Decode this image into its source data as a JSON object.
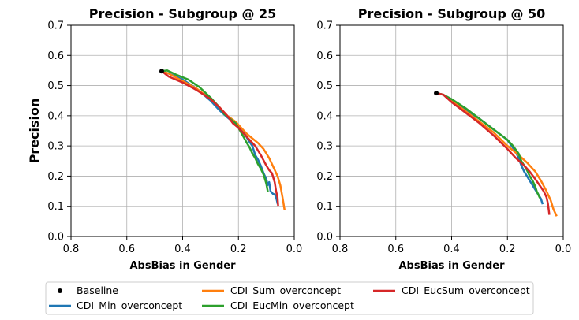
{
  "chart_data": [
    {
      "type": "line",
      "title": "Precision - Subgroup @ 25",
      "xlabel": "AbsBias in Gender",
      "ylabel": "Precision",
      "xlim": [
        0.8,
        0.0
      ],
      "ylim": [
        0.0,
        0.7
      ],
      "x_inverted": true,
      "grid": true,
      "xticks": [
        "0.8",
        "0.6",
        "0.4",
        "0.2",
        "0.0"
      ],
      "yticks": [
        "0.0",
        "0.1",
        "0.2",
        "0.3",
        "0.4",
        "0.5",
        "0.6",
        "0.7"
      ],
      "baseline": {
        "name": "Baseline",
        "x": 0.475,
        "y": 0.548
      },
      "series": [
        {
          "name": "CDI_Min_overconcept",
          "color": "#1f77b4",
          "x": [
            0.475,
            0.45,
            0.4,
            0.35,
            0.3,
            0.27,
            0.24,
            0.22,
            0.2,
            0.18,
            0.165,
            0.15,
            0.14,
            0.13,
            0.12,
            0.11,
            0.1,
            0.095,
            0.09,
            0.085,
            0.08,
            0.075,
            0.07,
            0.065,
            0.06
          ],
          "y": [
            0.548,
            0.54,
            0.52,
            0.49,
            0.45,
            0.42,
            0.395,
            0.38,
            0.365,
            0.345,
            0.32,
            0.3,
            0.27,
            0.255,
            0.235,
            0.21,
            0.19,
            0.17,
            0.18,
            0.15,
            0.145,
            0.14,
            0.14,
            0.13,
            0.11
          ]
        },
        {
          "name": "CDI_Sum_overconcept",
          "color": "#ff7f0e",
          "x": [
            0.475,
            0.45,
            0.4,
            0.35,
            0.3,
            0.27,
            0.24,
            0.21,
            0.19,
            0.17,
            0.15,
            0.13,
            0.11,
            0.09,
            0.075,
            0.06,
            0.05,
            0.042,
            0.035
          ],
          "y": [
            0.548,
            0.54,
            0.515,
            0.49,
            0.455,
            0.43,
            0.4,
            0.38,
            0.36,
            0.34,
            0.325,
            0.31,
            0.29,
            0.26,
            0.23,
            0.2,
            0.17,
            0.13,
            0.09
          ]
        },
        {
          "name": "CDI_EucMin_overconcept",
          "color": "#2ca02c",
          "x": [
            0.475,
            0.455,
            0.42,
            0.38,
            0.34,
            0.3,
            0.27,
            0.25,
            0.23,
            0.21,
            0.2,
            0.185,
            0.17,
            0.16,
            0.15,
            0.14,
            0.13,
            0.12,
            0.11,
            0.105,
            0.1,
            0.095
          ],
          "y": [
            0.548,
            0.55,
            0.535,
            0.52,
            0.495,
            0.46,
            0.43,
            0.405,
            0.39,
            0.375,
            0.36,
            0.335,
            0.31,
            0.295,
            0.275,
            0.26,
            0.24,
            0.225,
            0.205,
            0.19,
            0.175,
            0.15
          ]
        },
        {
          "name": "CDI_EucSum_overconcept",
          "color": "#d62728",
          "x": [
            0.475,
            0.45,
            0.4,
            0.35,
            0.3,
            0.27,
            0.24,
            0.22,
            0.2,
            0.18,
            0.16,
            0.14,
            0.12,
            0.1,
            0.09,
            0.08,
            0.07,
            0.065,
            0.06,
            0.058
          ],
          "y": [
            0.548,
            0.53,
            0.51,
            0.485,
            0.455,
            0.43,
            0.4,
            0.375,
            0.36,
            0.34,
            0.32,
            0.3,
            0.27,
            0.235,
            0.22,
            0.21,
            0.18,
            0.15,
            0.13,
            0.105
          ]
        }
      ]
    },
    {
      "type": "line",
      "title": "Precision - Subgroup @ 50",
      "xlabel": "AbsBias in Gender",
      "ylabel": "",
      "xlim": [
        0.8,
        0.0
      ],
      "ylim": [
        0.0,
        0.7
      ],
      "x_inverted": true,
      "grid": true,
      "xticks": [
        "0.8",
        "0.6",
        "0.4",
        "0.2",
        "0.0"
      ],
      "yticks": [
        "0.0",
        "0.1",
        "0.2",
        "0.3",
        "0.4",
        "0.5",
        "0.6",
        "0.7"
      ],
      "baseline": {
        "name": "Baseline",
        "x": 0.455,
        "y": 0.475
      },
      "series": [
        {
          "name": "CDI_Min_overconcept",
          "color": "#1f77b4",
          "x": [
            0.455,
            0.43,
            0.4,
            0.35,
            0.3,
            0.25,
            0.2,
            0.17,
            0.16,
            0.15,
            0.14,
            0.13,
            0.12,
            0.11,
            0.1,
            0.09,
            0.08,
            0.075
          ],
          "y": [
            0.475,
            0.47,
            0.45,
            0.42,
            0.39,
            0.355,
            0.32,
            0.28,
            0.26,
            0.235,
            0.215,
            0.2,
            0.185,
            0.17,
            0.155,
            0.14,
            0.125,
            0.11
          ]
        },
        {
          "name": "CDI_Sum_overconcept",
          "color": "#ff7f0e",
          "x": [
            0.455,
            0.43,
            0.4,
            0.35,
            0.3,
            0.25,
            0.2,
            0.16,
            0.13,
            0.1,
            0.08,
            0.06,
            0.045,
            0.035,
            0.025
          ],
          "y": [
            0.475,
            0.47,
            0.45,
            0.415,
            0.38,
            0.345,
            0.3,
            0.27,
            0.245,
            0.215,
            0.185,
            0.15,
            0.12,
            0.09,
            0.07
          ]
        },
        {
          "name": "CDI_EucMin_overconcept",
          "color": "#2ca02c",
          "x": [
            0.455,
            0.43,
            0.4,
            0.35,
            0.3,
            0.25,
            0.2,
            0.18,
            0.16,
            0.15,
            0.14,
            0.13,
            0.12,
            0.11,
            0.1,
            0.095,
            0.09,
            0.085
          ],
          "y": [
            0.475,
            0.47,
            0.455,
            0.425,
            0.39,
            0.355,
            0.32,
            0.3,
            0.275,
            0.25,
            0.235,
            0.22,
            0.2,
            0.185,
            0.165,
            0.15,
            0.14,
            0.13
          ]
        },
        {
          "name": "CDI_EucSum_overconcept",
          "color": "#d62728",
          "x": [
            0.455,
            0.43,
            0.4,
            0.35,
            0.3,
            0.25,
            0.2,
            0.17,
            0.14,
            0.12,
            0.1,
            0.085,
            0.07,
            0.06,
            0.055,
            0.05
          ],
          "y": [
            0.475,
            0.47,
            0.445,
            0.41,
            0.375,
            0.335,
            0.29,
            0.26,
            0.235,
            0.215,
            0.19,
            0.17,
            0.15,
            0.13,
            0.11,
            0.075
          ]
        }
      ]
    }
  ],
  "legend": {
    "position": "bottom",
    "items": [
      {
        "label": "Baseline",
        "kind": "marker",
        "color": "#000000"
      },
      {
        "label": "CDI_Min_overconcept",
        "kind": "line",
        "color": "#1f77b4"
      },
      {
        "label": "CDI_Sum_overconcept",
        "kind": "line",
        "color": "#ff7f0e"
      },
      {
        "label": "CDI_EucMin_overconcept",
        "kind": "line",
        "color": "#2ca02c"
      },
      {
        "label": "CDI_EucSum_overconcept",
        "kind": "line",
        "color": "#d62728"
      }
    ]
  }
}
